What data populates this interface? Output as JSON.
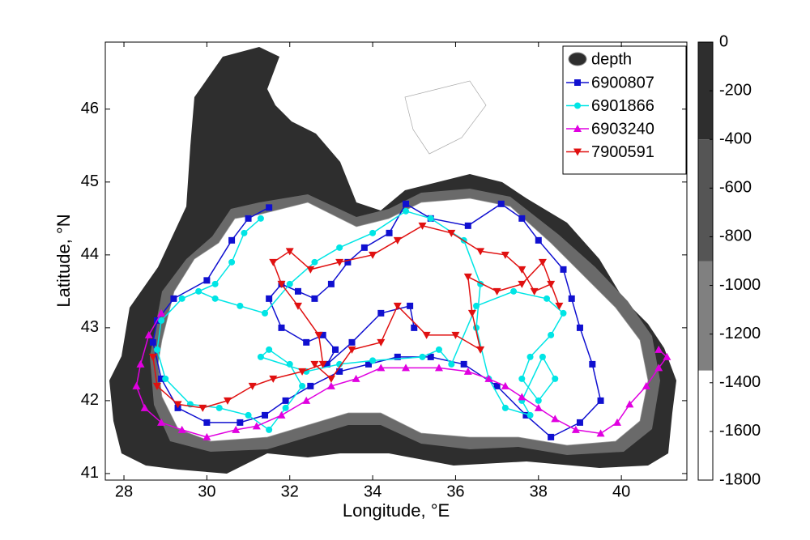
{
  "chart_data": {
    "type": "line",
    "xlabel": "Longitude, °E",
    "ylabel": "Latitude, °N",
    "xlim": [
      27.55,
      41.58
    ],
    "ylim": [
      40.91,
      46.92
    ],
    "xticks": [
      28,
      30,
      32,
      34,
      36,
      38,
      40
    ],
    "yticks": [
      41,
      42,
      43,
      44,
      45,
      46
    ],
    "colorbar": {
      "name": "depth",
      "lim": [
        -1800,
        0
      ],
      "ticks": [
        0,
        -200,
        -400,
        -600,
        -800,
        -1000,
        -1200,
        -1400,
        -1600,
        -1800
      ],
      "levels": [
        0,
        -400,
        -900,
        -1350,
        -1800
      ],
      "colors": [
        "#2e2e2e",
        "#555555",
        "#808080",
        "#ffffff"
      ]
    },
    "series": [
      {
        "name": "6900807",
        "color": "#1010d0",
        "marker": "square",
        "x": [
          31.5,
          31.0,
          30.6,
          30.0,
          29.2,
          28.8,
          28.7,
          28.9,
          29.3,
          30.0,
          30.8,
          31.4,
          31.9,
          32.5,
          33.2,
          33.9,
          34.6,
          35.4,
          36.2,
          37.0,
          37.7,
          38.3,
          39.0,
          39.5,
          39.3,
          39.0,
          38.8,
          38.6,
          38.0,
          37.6,
          37.1,
          36.3,
          35.4,
          34.8,
          34.4,
          33.8,
          33.4,
          33.0,
          32.6,
          32.2,
          31.8,
          31.5,
          31.8,
          32.4,
          32.8,
          33.1,
          32.9,
          33.5,
          34.2,
          34.9,
          35.0
        ],
        "values": [
          44.65,
          44.5,
          44.2,
          43.65,
          43.4,
          43.1,
          42.8,
          42.3,
          41.9,
          41.7,
          41.7,
          41.8,
          42.0,
          42.2,
          42.4,
          42.5,
          42.6,
          42.6,
          42.5,
          42.2,
          41.8,
          41.5,
          41.7,
          42.0,
          42.5,
          43.0,
          43.4,
          43.8,
          44.2,
          44.5,
          44.7,
          44.4,
          44.5,
          44.7,
          44.3,
          44.1,
          43.9,
          43.6,
          43.4,
          43.5,
          43.6,
          43.4,
          43.0,
          42.8,
          42.9,
          42.7,
          42.5,
          42.8,
          43.2,
          43.3,
          43.0
        ]
      },
      {
        "name": "6901866",
        "color": "#00e5e5",
        "marker": "circle",
        "x": [
          31.3,
          30.9,
          30.6,
          30.2,
          29.4,
          28.9,
          28.8,
          29.0,
          29.6,
          30.3,
          31.0,
          31.5,
          31.9,
          32.3,
          32.0,
          31.5,
          31.3,
          32.4,
          33.2,
          34.0,
          35.2,
          35.6,
          35.9,
          36.5,
          37.4,
          38.2,
          38.6,
          38.3,
          37.8,
          37.6,
          38.0,
          38.4,
          38.1,
          37.6,
          37.8,
          37.2,
          36.8,
          36.5,
          36.6,
          36.2,
          35.4,
          34.8,
          34.0,
          33.2,
          32.6,
          32.0,
          31.4,
          30.8,
          30.2,
          29.8
        ],
        "values": [
          44.5,
          44.3,
          43.9,
          43.6,
          43.4,
          43.1,
          42.7,
          42.3,
          41.95,
          41.9,
          41.8,
          41.6,
          41.9,
          42.2,
          42.5,
          42.7,
          42.6,
          42.4,
          42.5,
          42.55,
          42.6,
          42.7,
          42.5,
          43.3,
          43.5,
          43.4,
          43.2,
          42.9,
          42.6,
          42.3,
          42.0,
          42.3,
          42.6,
          42.0,
          41.8,
          41.9,
          42.3,
          43.0,
          43.6,
          44.2,
          44.5,
          44.6,
          44.3,
          44.1,
          43.9,
          43.6,
          43.2,
          43.3,
          43.4,
          43.5
        ]
      },
      {
        "name": "6903240",
        "color": "#e000e0",
        "marker": "triangle-up",
        "x": [
          28.9,
          28.6,
          28.4,
          28.3,
          28.5,
          28.9,
          29.4,
          30.0,
          30.7,
          31.2,
          31.8,
          32.4,
          33.0,
          33.6,
          34.2,
          34.8,
          35.6,
          36.3,
          36.8,
          37.2,
          37.6,
          38.0,
          38.4,
          38.9,
          39.5,
          39.9,
          40.2,
          40.6,
          40.9,
          41.1,
          40.9
        ],
        "values": [
          43.2,
          42.9,
          42.5,
          42.2,
          41.9,
          41.7,
          41.6,
          41.5,
          41.6,
          41.65,
          41.8,
          42.0,
          42.2,
          42.3,
          42.45,
          42.45,
          42.45,
          42.4,
          42.3,
          42.2,
          42.05,
          41.9,
          41.75,
          41.6,
          41.55,
          41.7,
          41.95,
          42.2,
          42.45,
          42.6,
          42.7
        ]
      },
      {
        "name": "7900591",
        "color": "#e01010",
        "marker": "triangle-down",
        "x": [
          28.7,
          28.8,
          29.3,
          29.9,
          30.5,
          31.1,
          31.6,
          32.3,
          32.8,
          32.7,
          32.2,
          31.8,
          31.6,
          32.0,
          32.5,
          33.2,
          34.0,
          34.6,
          35.2,
          35.9,
          36.6,
          37.2,
          37.6,
          37.9,
          38.3,
          38.5,
          38.1,
          37.6,
          37.0,
          36.3,
          36.4,
          36.6,
          36.0,
          35.3,
          34.6,
          34.2,
          33.5,
          33.0,
          32.6
        ],
        "values": [
          42.6,
          42.2,
          41.95,
          41.9,
          42.0,
          42.2,
          42.3,
          42.4,
          42.5,
          42.9,
          43.3,
          43.6,
          43.9,
          44.05,
          43.8,
          43.9,
          44.0,
          44.2,
          44.4,
          44.3,
          44.05,
          44.0,
          43.8,
          43.5,
          43.6,
          43.3,
          43.9,
          43.6,
          43.5,
          43.7,
          43.2,
          42.7,
          42.9,
          42.9,
          43.3,
          42.8,
          42.7,
          42.3,
          42.5
        ]
      }
    ]
  }
}
